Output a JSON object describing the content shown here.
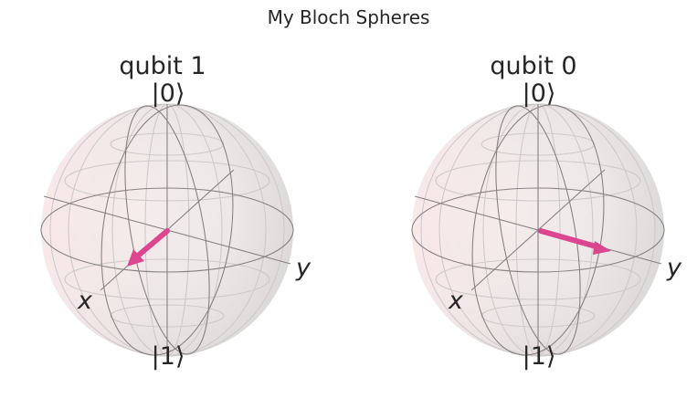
{
  "figure": {
    "title": "My Bloch Spheres"
  },
  "spheres": [
    {
      "title": "qubit 1",
      "pole_top": "|0⟩",
      "pole_bottom": "|1⟩",
      "axis_x": "x",
      "axis_y": "y",
      "vector_tip_direction": "toward x (front-left)"
    },
    {
      "title": "qubit 0",
      "pole_top": "|0⟩",
      "pole_bottom": "|1⟩",
      "axis_x": "x",
      "axis_y": "y",
      "vector_tip_direction": "toward y (right)"
    }
  ],
  "colors": {
    "sphere_fill": "#eeebeb",
    "sphere_left_tint": "#f8e8e8",
    "wire_dark": "#8a8282",
    "wire_light": "#d4d0d0",
    "vector": "#dc4590",
    "text": "#262626"
  }
}
